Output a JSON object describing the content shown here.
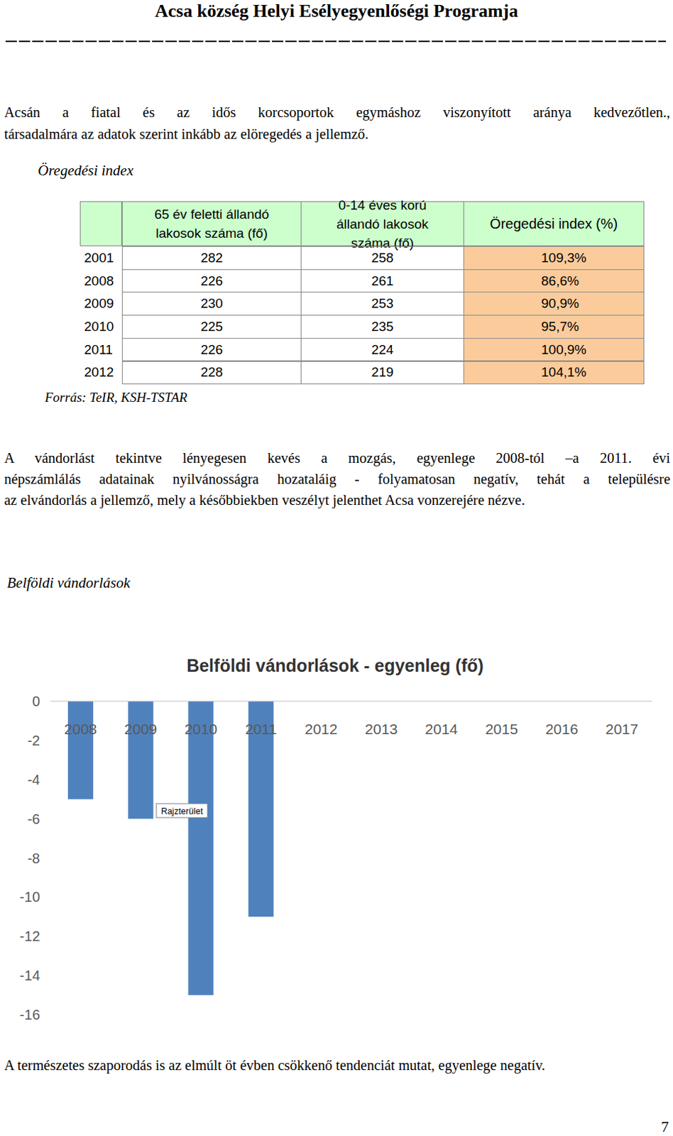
{
  "header": {
    "title": "Acsa község Helyi Esélyegyenlőségi Programja"
  },
  "paragraphs": [
    [
      "Acsán a fiatal és az idős korcsoportok egymáshoz viszonyított aránya kedvezőtlen.,",
      "társadalmára az adatok szerint inkább az elöregedés a jellemző."
    ],
    [
      "A vándorlást tekintve lényegesen kevés a mozgás, egyenlege 2008-tól –a 2011. évi",
      "népszámlálás adatainak nyilvánosságra hozataláig - folyamatosan negatív, tehát a településre",
      "az elvándorlás a jellemző, mely a későbbiekben veszélyt jelenthet Acsa vonzerejére nézve."
    ],
    [
      "A természetes szaporodás is az elmúlt öt évben csökkenő tendenciát mutat, egyenlege negatív."
    ]
  ],
  "headings": [
    "Öregedési index",
    "Belföldi vándorlások"
  ],
  "table": {
    "columns": [
      "65 év feletti állandó lakosok száma (fő)",
      "0-14 éves korú állandó lakosok száma (fő)",
      "Öregedési index (%)"
    ],
    "rows": [
      [
        2001,
        282,
        258,
        "109,3%"
      ],
      [
        2008,
        226,
        261,
        "86,6%"
      ],
      [
        2009,
        230,
        253,
        "90,9%"
      ],
      [
        2010,
        225,
        235,
        "95,7%"
      ],
      [
        2011,
        226,
        224,
        "100,9%"
      ],
      [
        2012,
        228,
        219,
        "104,1%"
      ]
    ],
    "source": "Forrás: TeIR, KSH-TSTAR"
  },
  "chart_data": {
    "type": "bar",
    "title": "Belföldi vándorlások - egyenleg (fő)",
    "categories": [
      "2008",
      "2009",
      "2010",
      "2011",
      "2012",
      "2013",
      "2014",
      "2015",
      "2016",
      "2017"
    ],
    "values": [
      -5,
      -6,
      -15,
      -11,
      null,
      null,
      null,
      null,
      null,
      null
    ],
    "color": "#4f81bd",
    "ylim": [
      -16,
      0
    ],
    "yticks": [
      -16,
      -14,
      -12,
      -10,
      -8,
      -6,
      -4,
      -2,
      0
    ],
    "grid": false,
    "data_labels": false,
    "annotations": [
      "Rajzterület"
    ]
  },
  "page_number": 7
}
